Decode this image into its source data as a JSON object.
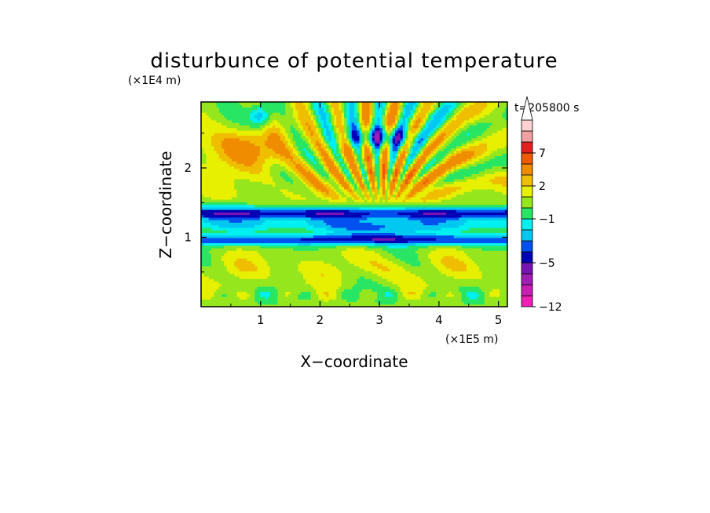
{
  "chart_data": {
    "type": "heatmap",
    "title": "disturbunce of potential temperature",
    "time_label": "t=205800 s",
    "xlabel": "X−coordinate",
    "ylabel": "Z−coordinate",
    "x_unit": "(×1E5 m)",
    "y_unit": "(×1E4 m)",
    "xlim": [
      0,
      5.15
    ],
    "ylim": [
      0,
      2.95
    ],
    "x_ticks": [
      "1",
      "2",
      "3",
      "4",
      "5"
    ],
    "x_tick_values": [
      1,
      2,
      3,
      4,
      5
    ],
    "y_ticks": [
      "1",
      "2"
    ],
    "y_tick_values": [
      1,
      2
    ],
    "colorbar": {
      "levels": [
        -12,
        -10,
        -8,
        -6,
        -5,
        -4,
        -3,
        -2,
        -1,
        0,
        1,
        2,
        3,
        5,
        7,
        9,
        11
      ],
      "colors": [
        "#f01eb4",
        "#c81eb4",
        "#a01eb4",
        "#7814b4",
        "#0000b4",
        "#0050f0",
        "#00c8f0",
        "#00f0f0",
        "#28e664",
        "#96e61e",
        "#e6f000",
        "#f0be00",
        "#f08c00",
        "#f05a00",
        "#e61e1e",
        "#f0a0a0",
        "#ffd2d2"
      ],
      "tick_labels": [
        "−12",
        "−5",
        "−1",
        "2",
        "7"
      ],
      "tick_values": [
        -12,
        -5,
        -1,
        2,
        7
      ],
      "extend": "max"
    },
    "grid": false
  }
}
